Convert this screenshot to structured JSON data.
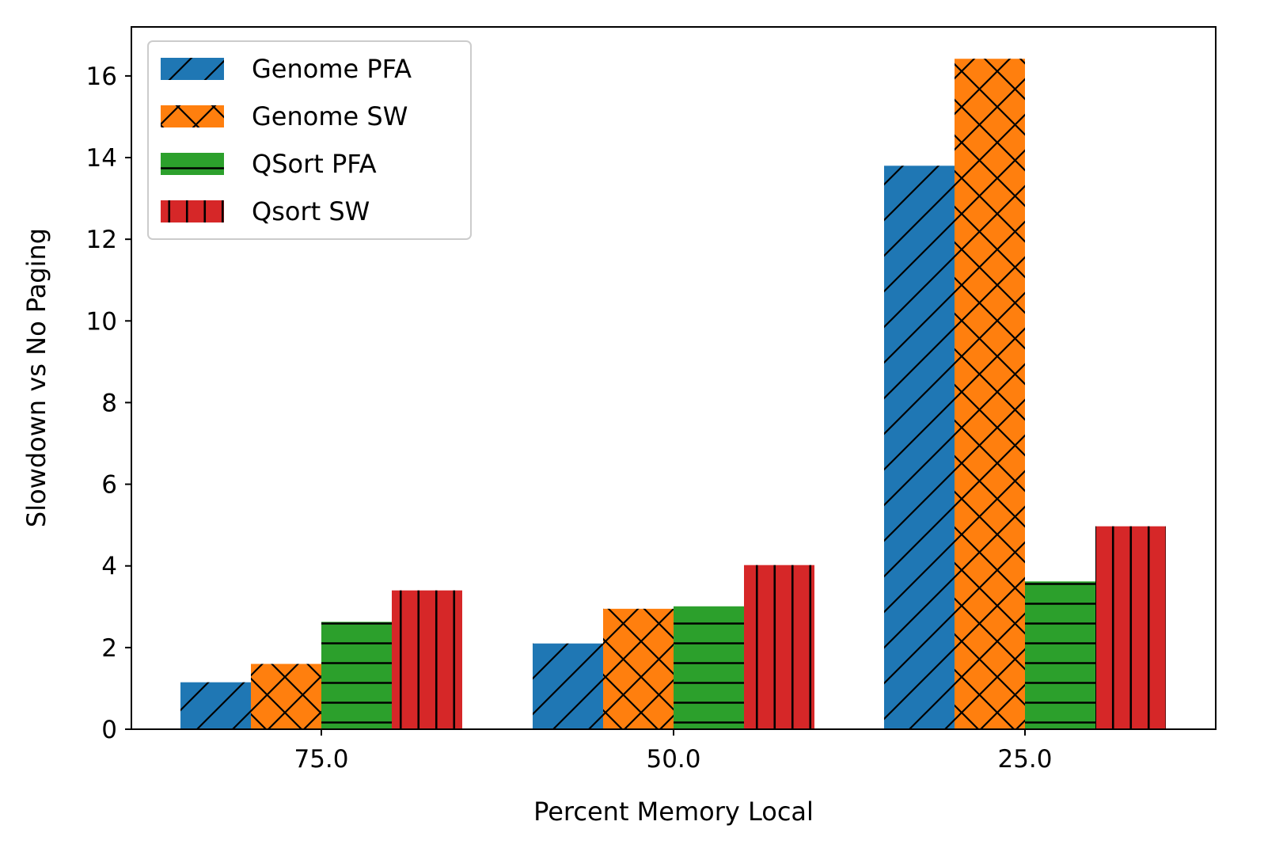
{
  "chart_data": {
    "type": "bar",
    "title": "",
    "xlabel": "Percent Memory Local",
    "ylabel": "Slowdown vs No Paging",
    "categories": [
      "75.0",
      "50.0",
      "25.0"
    ],
    "ylim": [
      0,
      17.2
    ],
    "yticks": [
      "0",
      "2",
      "4",
      "6",
      "8",
      "10",
      "12",
      "14",
      "16"
    ],
    "grid": false,
    "legend_position": "top-left",
    "series": [
      {
        "name": "Genome PFA",
        "values": [
          1.15,
          2.1,
          13.8
        ],
        "color": "#1f77b4",
        "hatch": "diagonal"
      },
      {
        "name": "Genome SW",
        "values": [
          1.6,
          2.95,
          16.42
        ],
        "color": "#ff7f0e",
        "hatch": "cross"
      },
      {
        "name": "QSort PFA",
        "values": [
          2.63,
          3.01,
          3.62
        ],
        "color": "#2ca02c",
        "hatch": "horizontal"
      },
      {
        "name": "Qsort SW",
        "values": [
          3.4,
          4.02,
          4.97
        ],
        "color": "#d62728",
        "hatch": "vertical"
      }
    ]
  }
}
